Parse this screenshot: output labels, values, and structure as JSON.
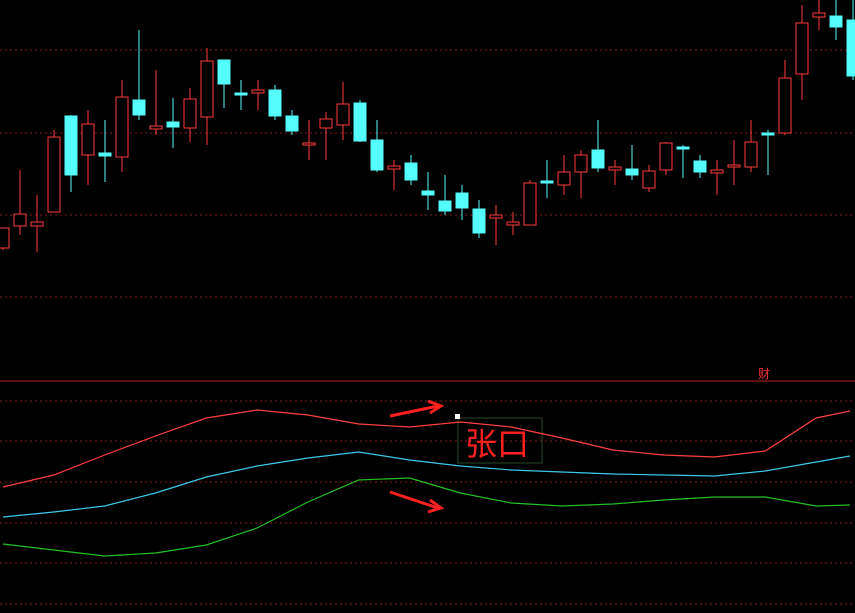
{
  "chart_data": [
    {
      "type": "candlestick",
      "ylim": [
        0,
        380
      ],
      "up_color": "#ff3c3c",
      "down_color": "#54fcfc",
      "open": [
        132,
        154,
        154,
        168,
        264,
        225,
        227,
        223,
        280,
        251,
        258,
        252,
        263,
        320,
        287,
        287,
        290,
        264,
        235,
        252,
        255,
        277,
        240,
        211,
        217,
        189,
        179,
        187,
        171,
        162,
        155,
        155,
        199,
        195,
        208,
        230,
        210,
        211,
        192,
        210,
        233,
        219,
        207,
        213,
        213,
        247,
        247,
        306,
        363,
        364,
        360
      ],
      "close": [
        152,
        166,
        158,
        243,
        205,
        256,
        224,
        283,
        265,
        254,
        253,
        281,
        319,
        296,
        285,
        290,
        264,
        249,
        237,
        261,
        276,
        239,
        210,
        214,
        200,
        185,
        169,
        172,
        147,
        165,
        158,
        197,
        197,
        208,
        225,
        212,
        213,
        205,
        209,
        237,
        231,
        208,
        210,
        215,
        238,
        245,
        302,
        357,
        367,
        353,
        304
      ],
      "high": [
        152,
        210,
        185,
        250,
        265,
        270,
        260,
        300,
        350,
        310,
        282,
        292,
        332,
        320,
        300,
        300,
        295,
        270,
        260,
        268,
        298,
        280,
        260,
        220,
        225,
        208,
        205,
        195,
        180,
        175,
        168,
        200,
        220,
        225,
        230,
        260,
        220,
        235,
        215,
        238,
        235,
        225,
        220,
        240,
        260,
        250,
        320,
        375,
        380,
        380,
        380
      ],
      "low": [
        130,
        145,
        128,
        168,
        188,
        195,
        198,
        208,
        260,
        245,
        232,
        238,
        235,
        272,
        270,
        270,
        260,
        245,
        220,
        220,
        240,
        238,
        208,
        190,
        195,
        170,
        165,
        160,
        142,
        135,
        145,
        155,
        182,
        185,
        182,
        208,
        195,
        200,
        188,
        205,
        202,
        202,
        185,
        195,
        208,
        205,
        245,
        280,
        350,
        340,
        300
      ]
    },
    {
      "type": "line",
      "ylim": [
        0,
        232
      ],
      "annotations": [
        "财",
        "张口"
      ],
      "x": [
        0,
        3,
        6,
        9,
        12,
        15,
        18,
        21,
        24,
        27,
        30,
        33,
        36,
        39,
        42,
        45,
        48,
        50
      ],
      "xlim": [
        0,
        50
      ],
      "series": [
        {
          "color": "#ff4040",
          "values": [
            126,
            138,
            158,
            177,
            195,
            203,
            198,
            189,
            186,
            191,
            186,
            175,
            163,
            158,
            156,
            162,
            195,
            202
          ]
        },
        {
          "color": "#3cc8e8",
          "values": [
            96,
            101,
            107,
            120,
            136,
            147,
            155,
            161,
            153,
            147,
            143,
            141,
            139,
            138,
            137,
            142,
            151,
            157
          ]
        },
        {
          "color": "#22c022",
          "values": [
            69,
            63,
            57,
            60,
            68,
            85,
            111,
            133,
            135,
            120,
            110,
            107,
            109,
            113,
            116,
            116,
            107,
            108
          ]
        }
      ]
    }
  ]
}
